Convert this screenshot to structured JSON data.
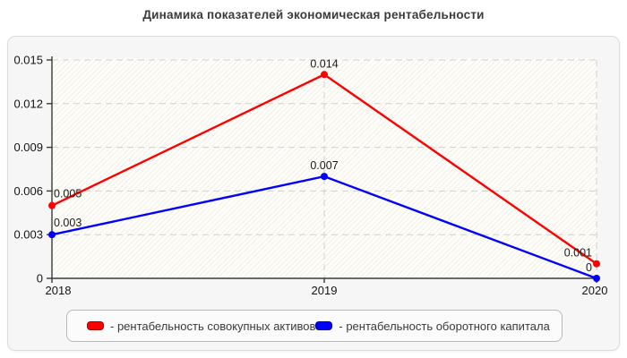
{
  "title": "Динамика показателей экономическая рентабельности",
  "legend": {
    "items": [
      {
        "label": "- рентабельность совокупных активов",
        "color": "#ff0000"
      },
      {
        "label": "- рентабельность оборотного капитала",
        "color": "#0000ff"
      }
    ]
  },
  "chart_data": {
    "type": "line",
    "title": "Динамика показателей экономическая рентабельности",
    "categories": [
      "2018",
      "2019",
      "2020"
    ],
    "series": [
      {
        "name": "рентабельность совокупных активов",
        "color": "#ff0000",
        "values": [
          0.005,
          0.014,
          0.001
        ],
        "labels": [
          "0.005",
          "0.014",
          "0.001"
        ]
      },
      {
        "name": "рентабельность оборотного капитала",
        "color": "#0000ff",
        "values": [
          0.003,
          0.007,
          0
        ],
        "labels": [
          "0.003",
          "0.007",
          "0"
        ]
      }
    ],
    "xlabel": "",
    "ylabel": "",
    "ylim": [
      0,
      0.015
    ],
    "yticks": [
      0,
      0.003,
      0.006,
      0.009,
      0.012,
      0.015
    ],
    "ytick_labels": [
      "0",
      "0.003",
      "0.006",
      "0.009",
      "0.012",
      "0.015"
    ],
    "grid": "dashed horizontal lines at each y tick; dashed vertical lines at 2019 and right edge; hatched plot background",
    "legend_position": "bottom",
    "marker": "filled circle"
  }
}
